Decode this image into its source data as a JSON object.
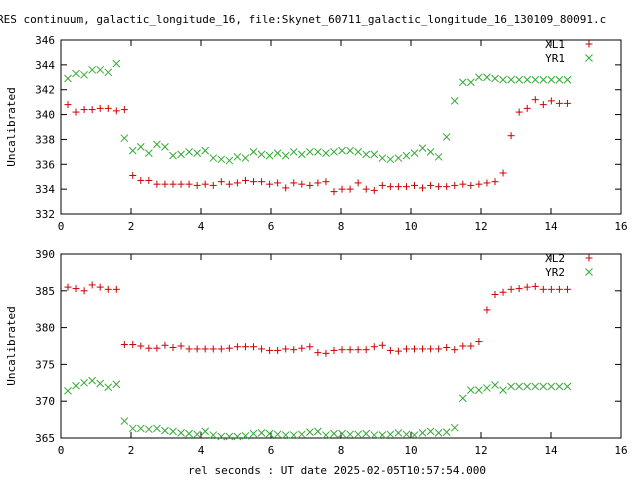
{
  "title": "RES continuum, galactic_longitude_16, file:Skynet_60711_galactic_longitude_16_130109_80091.c",
  "xlabel": "rel seconds : UT date 2025-02-05T10:57:54.000",
  "chart_data": [
    {
      "type": "scatter",
      "ylabel": "Uncalibrated",
      "xlim": [
        0,
        16
      ],
      "ylim": [
        332,
        346
      ],
      "xticks": [
        0,
        2,
        4,
        6,
        8,
        10,
        12,
        14,
        16
      ],
      "yticks": [
        332,
        334,
        336,
        338,
        340,
        342,
        344,
        346
      ],
      "grid": false,
      "legend_position": "top-right",
      "series": [
        {
          "name": "XL1",
          "color": "#cc0000",
          "marker": "plus",
          "x": [
            0.2,
            0.43,
            0.66,
            0.89,
            1.12,
            1.35,
            1.58,
            1.81,
            2.05,
            2.28,
            2.51,
            2.74,
            2.97,
            3.2,
            3.43,
            3.66,
            3.89,
            4.12,
            4.35,
            4.58,
            4.81,
            5.04,
            5.27,
            5.5,
            5.73,
            5.96,
            6.19,
            6.42,
            6.65,
            6.88,
            7.11,
            7.34,
            7.57,
            7.8,
            8.03,
            8.26,
            8.49,
            8.72,
            8.95,
            9.18,
            9.41,
            9.64,
            9.87,
            10.1,
            10.33,
            10.56,
            10.79,
            11.02,
            11.25,
            11.48,
            11.71,
            11.94,
            12.17,
            12.4,
            12.63,
            12.86,
            13.09,
            13.32,
            13.55,
            13.78,
            14.01,
            14.24,
            14.47
          ],
          "y": [
            340.8,
            340.2,
            340.4,
            340.4,
            340.5,
            340.5,
            340.3,
            340.4,
            335.1,
            334.7,
            334.7,
            334.4,
            334.4,
            334.4,
            334.4,
            334.4,
            334.3,
            334.4,
            334.3,
            334.6,
            334.4,
            334.5,
            334.7,
            334.6,
            334.6,
            334.4,
            334.5,
            334.1,
            334.5,
            334.4,
            334.3,
            334.5,
            334.6,
            333.8,
            334.0,
            334.0,
            334.5,
            334.0,
            333.9,
            334.3,
            334.2,
            334.2,
            334.2,
            334.3,
            334.1,
            334.3,
            334.2,
            334.2,
            334.3,
            334.4,
            334.3,
            334.4,
            334.5,
            334.6,
            335.3,
            338.3,
            340.2,
            340.5,
            341.2,
            340.8,
            341.1,
            340.9,
            340.9
          ]
        },
        {
          "name": "YR1",
          "color": "#33aa33",
          "marker": "cross",
          "x": [
            0.2,
            0.43,
            0.66,
            0.89,
            1.12,
            1.35,
            1.58,
            1.81,
            2.05,
            2.28,
            2.51,
            2.74,
            2.97,
            3.2,
            3.43,
            3.66,
            3.89,
            4.12,
            4.35,
            4.58,
            4.81,
            5.04,
            5.27,
            5.5,
            5.73,
            5.96,
            6.19,
            6.42,
            6.65,
            6.88,
            7.11,
            7.34,
            7.57,
            7.8,
            8.03,
            8.26,
            8.49,
            8.72,
            8.95,
            9.18,
            9.41,
            9.64,
            9.87,
            10.1,
            10.33,
            10.56,
            10.79,
            11.02,
            11.25,
            11.48,
            11.71,
            11.94,
            12.17,
            12.4,
            12.63,
            12.86,
            13.09,
            13.32,
            13.55,
            13.78,
            14.01,
            14.24,
            14.47
          ],
          "y": [
            342.9,
            343.3,
            343.2,
            343.6,
            343.6,
            343.4,
            344.1,
            338.1,
            337.1,
            337.4,
            336.9,
            337.6,
            337.4,
            336.7,
            336.8,
            337.0,
            336.9,
            337.1,
            336.5,
            336.4,
            336.3,
            336.6,
            336.5,
            337.0,
            336.8,
            336.7,
            336.9,
            336.7,
            337.0,
            336.8,
            337.0,
            337.0,
            336.9,
            337.0,
            337.1,
            337.1,
            337.0,
            336.8,
            336.8,
            336.5,
            336.4,
            336.5,
            336.7,
            336.9,
            337.3,
            337.0,
            336.6,
            338.2,
            341.1,
            342.6,
            342.6,
            343.0,
            343.0,
            342.9,
            342.8,
            342.8,
            342.8,
            342.8,
            342.8,
            342.8,
            342.8,
            342.8,
            342.8
          ]
        }
      ]
    },
    {
      "type": "scatter",
      "ylabel": "Uncalibrated",
      "xlim": [
        0,
        16
      ],
      "ylim": [
        365,
        390
      ],
      "xticks": [
        0,
        2,
        4,
        6,
        8,
        10,
        12,
        14,
        16
      ],
      "yticks": [
        365,
        370,
        375,
        380,
        385,
        390
      ],
      "grid": false,
      "legend_position": "top-right",
      "series": [
        {
          "name": "XL2",
          "color": "#cc0000",
          "marker": "plus",
          "x": [
            0.2,
            0.43,
            0.66,
            0.89,
            1.12,
            1.35,
            1.58,
            1.81,
            2.05,
            2.28,
            2.51,
            2.74,
            2.97,
            3.2,
            3.43,
            3.66,
            3.89,
            4.12,
            4.35,
            4.58,
            4.81,
            5.04,
            5.27,
            5.5,
            5.73,
            5.96,
            6.19,
            6.42,
            6.65,
            6.88,
            7.11,
            7.34,
            7.57,
            7.8,
            8.03,
            8.26,
            8.49,
            8.72,
            8.95,
            9.18,
            9.41,
            9.64,
            9.87,
            10.1,
            10.33,
            10.56,
            10.79,
            11.02,
            11.25,
            11.48,
            11.71,
            11.94,
            12.17,
            12.4,
            12.63,
            12.86,
            13.09,
            13.32,
            13.55,
            13.78,
            14.01,
            14.24,
            14.47
          ],
          "y": [
            385.5,
            385.3,
            385.0,
            385.8,
            385.5,
            385.2,
            385.2,
            377.7,
            377.7,
            377.5,
            377.2,
            377.2,
            377.6,
            377.3,
            377.5,
            377.1,
            377.1,
            377.1,
            377.1,
            377.1,
            377.2,
            377.4,
            377.4,
            377.4,
            377.1,
            376.9,
            376.9,
            377.1,
            377.0,
            377.2,
            377.4,
            376.6,
            376.5,
            376.9,
            377.0,
            377.0,
            377.0,
            377.0,
            377.4,
            377.6,
            376.9,
            376.8,
            377.1,
            377.1,
            377.1,
            377.1,
            377.1,
            377.3,
            377.0,
            377.5,
            377.5,
            378.1,
            382.4,
            384.5,
            384.8,
            385.2,
            385.3,
            385.5,
            385.6,
            385.2,
            385.2,
            385.2,
            385.2
          ]
        },
        {
          "name": "YR2",
          "color": "#33aa33",
          "marker": "cross",
          "x": [
            0.2,
            0.43,
            0.66,
            0.89,
            1.12,
            1.35,
            1.58,
            1.81,
            2.05,
            2.28,
            2.51,
            2.74,
            2.97,
            3.2,
            3.43,
            3.66,
            3.89,
            4.12,
            4.35,
            4.58,
            4.81,
            5.04,
            5.27,
            5.5,
            5.73,
            5.96,
            6.19,
            6.42,
            6.65,
            6.88,
            7.11,
            7.34,
            7.57,
            7.8,
            8.03,
            8.26,
            8.49,
            8.72,
            8.95,
            9.18,
            9.41,
            9.64,
            9.87,
            10.1,
            10.33,
            10.56,
            10.79,
            11.02,
            11.25,
            11.48,
            11.71,
            11.94,
            12.17,
            12.4,
            12.63,
            12.86,
            13.09,
            13.32,
            13.55,
            13.78,
            14.01,
            14.24,
            14.47
          ],
          "y": [
            371.4,
            372.1,
            372.5,
            372.8,
            372.4,
            371.9,
            372.3,
            367.3,
            366.3,
            366.3,
            366.2,
            366.3,
            366.0,
            365.9,
            365.7,
            365.6,
            365.5,
            365.9,
            365.4,
            365.2,
            365.2,
            365.2,
            365.3,
            365.6,
            365.7,
            365.6,
            365.5,
            365.4,
            365.4,
            365.5,
            365.8,
            365.9,
            365.4,
            365.6,
            365.6,
            365.5,
            365.5,
            365.6,
            365.4,
            365.4,
            365.5,
            365.7,
            365.5,
            365.4,
            365.7,
            365.9,
            365.7,
            365.8,
            366.4,
            370.4,
            371.5,
            371.5,
            371.8,
            372.2,
            371.5,
            372.0,
            372.0,
            372.0,
            372.0,
            372.0,
            372.0,
            372.0,
            372.0
          ]
        }
      ]
    }
  ]
}
